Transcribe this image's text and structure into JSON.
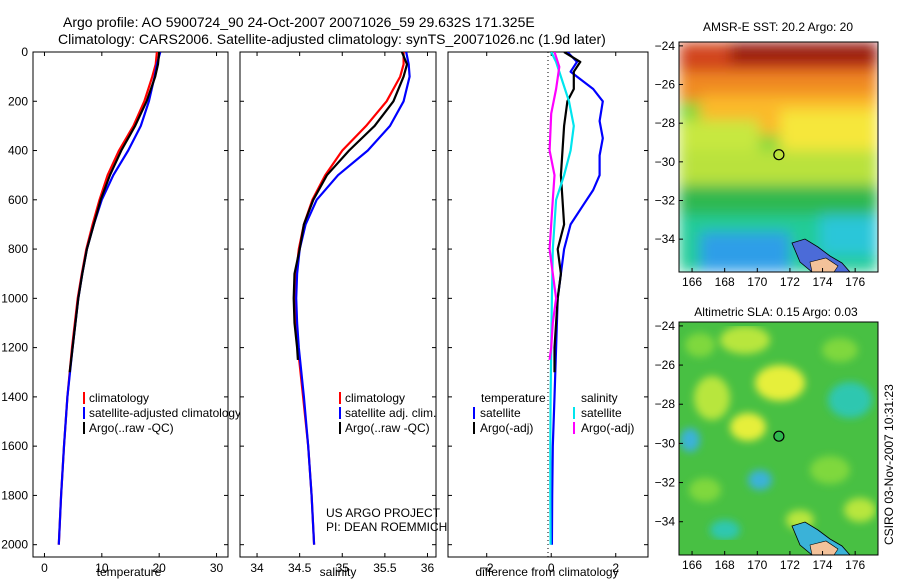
{
  "title": {
    "line1": "Argo profile: AO 5900724_90 24-Oct-2007 20071026_59 29.632S 171.325E",
    "line2": "Climatology: CARS2006. Satellite-adjusted climatology: synTS_20071026.nc (1.9d later)"
  },
  "credit": {
    "project": "US ARGO PROJECT",
    "pi": "PI: DEAN ROEMMICH",
    "stamp": "CSIRO 03-Nov-2007 10:31:23"
  },
  "colors": {
    "climatology": "#ff0000",
    "satellite": "#0000ff",
    "argo": "#000000",
    "sat_diff": "#00e5ee",
    "argo_adj": "#ff00ff"
  },
  "chart_data": [
    {
      "type": "line",
      "panel": "temperature",
      "xlabel": "temperature",
      "ylabel": "",
      "y_reversed": true,
      "xlim": [
        -2,
        32
      ],
      "ylim": [
        0,
        2050
      ],
      "xticks": [
        0,
        10,
        20,
        30
      ],
      "yticks": [
        0,
        200,
        400,
        600,
        800,
        1000,
        1200,
        1400,
        1600,
        1800,
        2000
      ],
      "legend": [
        "climatology",
        "satellite-adjusted climatology",
        "Argo(..raw -QC)"
      ],
      "series": [
        {
          "name": "climatology",
          "color": "#ff0000",
          "depth": [
            0,
            50,
            100,
            200,
            300,
            400,
            500,
            600,
            700,
            800,
            900,
            1000,
            1200,
            1400,
            1600,
            1800,
            2000
          ],
          "values": [
            19.6,
            19.4,
            18.8,
            17.4,
            15.5,
            13.0,
            11.0,
            9.6,
            8.4,
            7.3,
            6.5,
            5.8,
            4.8,
            4.0,
            3.4,
            2.9,
            2.5
          ]
        },
        {
          "name": "satellite-adjusted climatology",
          "color": "#0000ff",
          "depth": [
            0,
            50,
            100,
            200,
            300,
            400,
            500,
            600,
            700,
            800,
            900,
            1000,
            1200,
            1400,
            1600,
            1800,
            2000
          ],
          "values": [
            20.2,
            19.6,
            19.2,
            18.2,
            16.8,
            14.6,
            12.0,
            10.0,
            8.6,
            7.4,
            6.6,
            5.9,
            4.9,
            4.0,
            3.4,
            2.9,
            2.5
          ]
        },
        {
          "name": "Argo(..raw -QC)",
          "color": "#000000",
          "depth": [
            0,
            50,
            100,
            200,
            300,
            400,
            500,
            600,
            700,
            800,
            900,
            1000,
            1200,
            1300
          ],
          "values": [
            20.0,
            19.8,
            19.3,
            17.8,
            15.8,
            13.4,
            11.4,
            9.8,
            8.6,
            7.4,
            6.6,
            5.9,
            4.9,
            4.4
          ]
        }
      ]
    },
    {
      "type": "line",
      "panel": "salinity",
      "xlabel": "salinity",
      "ylabel": "",
      "y_reversed": true,
      "xlim": [
        33.8,
        36.1
      ],
      "ylim": [
        0,
        2050
      ],
      "xticks": [
        34,
        34.5,
        35,
        35.5,
        36
      ],
      "legend": [
        "climatology",
        "satellite adj. clim.",
        "Argo(..raw -QC)"
      ],
      "series": [
        {
          "name": "climatology",
          "color": "#ff0000",
          "depth": [
            0,
            50,
            100,
            200,
            300,
            400,
            500,
            600,
            700,
            800,
            900,
            1000,
            1100,
            1200,
            1400,
            1600,
            1800,
            2000
          ],
          "values": [
            35.72,
            35.72,
            35.68,
            35.52,
            35.28,
            35.0,
            34.8,
            34.65,
            34.55,
            34.49,
            34.46,
            34.45,
            34.46,
            34.48,
            34.54,
            34.6,
            34.64,
            34.67
          ]
        },
        {
          "name": "satellite adj. clim.",
          "color": "#0000ff",
          "depth": [
            0,
            50,
            100,
            200,
            300,
            400,
            500,
            600,
            700,
            800,
            900,
            1000,
            1100,
            1200,
            1400,
            1600,
            1800,
            2000
          ],
          "values": [
            35.75,
            35.78,
            35.79,
            35.72,
            35.56,
            35.3,
            34.95,
            34.7,
            34.57,
            34.5,
            34.47,
            34.46,
            34.47,
            34.49,
            34.55,
            34.6,
            34.64,
            34.67
          ]
        },
        {
          "name": "Argo(..raw -QC)",
          "color": "#000000",
          "depth": [
            0,
            50,
            100,
            200,
            300,
            400,
            500,
            600,
            700,
            800,
            900,
            1000,
            1100,
            1200,
            1250
          ],
          "values": [
            35.7,
            35.76,
            35.72,
            35.6,
            35.38,
            35.08,
            34.82,
            34.66,
            34.55,
            34.5,
            34.44,
            34.43,
            34.44,
            34.47,
            34.48
          ]
        }
      ]
    },
    {
      "type": "line",
      "panel": "difference",
      "xlabel": "difference from climatology",
      "ylabel": "",
      "y_reversed": true,
      "xlim": [
        -3.2,
        3.0
      ],
      "ylim": [
        0,
        2050
      ],
      "xticks": [
        -2,
        0,
        2
      ],
      "legend_temperature_title": "temperature",
      "legend_salinity_title": "salinity",
      "legend_temperature": [
        "satellite",
        "Argo(-adj)"
      ],
      "legend_salinity": [
        "satellite",
        "Argo(-adj)"
      ],
      "series": [
        {
          "name": "temperature satellite",
          "color": "#0000ff",
          "depth": [
            0,
            40,
            80,
            150,
            200,
            280,
            350,
            420,
            500,
            560,
            620,
            700,
            800,
            900,
            1000,
            1200,
            1400,
            1600,
            1800,
            2000
          ],
          "values": [
            0.5,
            0.8,
            0.6,
            1.3,
            1.6,
            1.5,
            1.6,
            1.5,
            1.5,
            1.3,
            1.0,
            0.6,
            0.4,
            0.3,
            0.2,
            0.15,
            0.1,
            0.05,
            0.03,
            0.02
          ]
        },
        {
          "name": "temperature Argo(-adj)",
          "color": "#000000",
          "depth": [
            0,
            40,
            80,
            150,
            200,
            300,
            400,
            500,
            600,
            700,
            800,
            900,
            1000,
            1100,
            1200,
            1300
          ],
          "values": [
            0.4,
            0.9,
            0.7,
            0.7,
            0.5,
            0.4,
            0.35,
            0.3,
            0.35,
            0.4,
            0.2,
            0.3,
            0.2,
            0.15,
            0.1,
            0.1
          ]
        },
        {
          "name": "salinity satellite",
          "color": "#00e5ee",
          "depth": [
            0,
            40,
            100,
            200,
            300,
            400,
            500,
            600,
            800,
            1000,
            1200,
            1400,
            1600,
            1800,
            2000
          ],
          "values": [
            0.0,
            0.15,
            0.3,
            0.55,
            0.7,
            0.6,
            0.4,
            0.15,
            0.05,
            0.02,
            0.0,
            -0.02,
            -0.03,
            -0.03,
            -0.02
          ]
        },
        {
          "name": "salinity Argo(-adj)",
          "color": "#ff00ff",
          "depth": [
            0,
            60,
            150,
            250,
            400,
            500,
            600,
            700,
            800,
            900,
            1000,
            1100,
            1200,
            1250
          ],
          "values": [
            0.1,
            0.25,
            0.15,
            0.0,
            -0.05,
            0.1,
            0.05,
            0.0,
            -0.05,
            0.05,
            0.15,
            0.05,
            0.0,
            -0.05
          ]
        }
      ]
    },
    {
      "type": "heatmap",
      "panel": "sst_map",
      "title": "AMSR-E SST: 20.2 Argo: 20",
      "xlim": [
        165.2,
        177.4
      ],
      "ylim": [
        -35.7,
        -23.8
      ],
      "xticks": [
        166,
        168,
        170,
        172,
        174,
        176
      ],
      "yticks": [
        -24,
        -26,
        -28,
        -30,
        -32,
        -34
      ],
      "float_position": {
        "lon": 171.325,
        "lat": -29.632
      },
      "colormap": [
        "#9a1e0d",
        "#d2441d",
        "#f08a22",
        "#fbb92a",
        "#f6e73a",
        "#c7e83f",
        "#6fcf3e",
        "#2fb84f",
        "#24cc98",
        "#29c6d9",
        "#2f9ee8"
      ]
    },
    {
      "type": "heatmap",
      "panel": "sla_map",
      "title": "Altimetric SLA: 0.15 Argo: 0.03",
      "xlim": [
        165.2,
        177.4
      ],
      "ylim": [
        -35.7,
        -23.8
      ],
      "xticks": [
        166,
        168,
        170,
        172,
        174,
        176
      ],
      "yticks": [
        -24,
        -26,
        -28,
        -30,
        -32,
        -34
      ],
      "float_position": {
        "lon": 171.325,
        "lat": -29.632
      },
      "colormap": [
        "#2fb84f",
        "#48c043",
        "#7fd83e",
        "#b8e63c",
        "#e6ef3a",
        "#2fc7b0",
        "#3ab2d8"
      ]
    }
  ]
}
